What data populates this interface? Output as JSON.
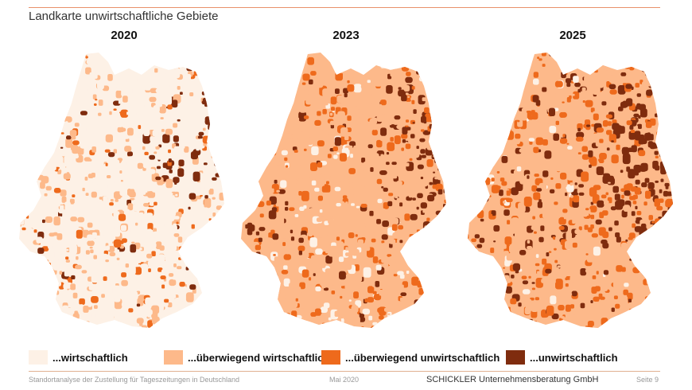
{
  "slide": {
    "title": "Landkarte unwirtschaftliche Gebiete"
  },
  "maps": [
    {
      "year": "2020",
      "weights": [
        0.62,
        0.28,
        0.08,
        0.02
      ],
      "east_bias": 0.35
    },
    {
      "year": "2023",
      "weights": [
        0.12,
        0.62,
        0.18,
        0.08
      ],
      "east_bias": 0.45
    },
    {
      "year": "2025",
      "weights": [
        0.05,
        0.48,
        0.3,
        0.17
      ],
      "east_bias": 0.55
    }
  ],
  "colors": {
    "level1": "#fdf1e6",
    "level2": "#fdb98a",
    "level3": "#ee6a1c",
    "level4": "#7f2c0e"
  },
  "legend": [
    {
      "label": "...wirtschaftlich",
      "color": "#fdf1e6"
    },
    {
      "label": "...überwiegend wirtschaftlich",
      "color": "#fdb98a"
    },
    {
      "label": "...überwiegend unwirtschaftlich",
      "color": "#ee6a1c"
    },
    {
      "label": "...unwirtschaftlich",
      "color": "#7f2c0e"
    }
  ],
  "footer": {
    "left": "Standortanalyse der Zustellung für Tageszeitungen in Deutschland",
    "date": "Mai 2020",
    "company": "SCHICKLER Unternehmensberatung GmbH",
    "page": "Seite 9"
  }
}
